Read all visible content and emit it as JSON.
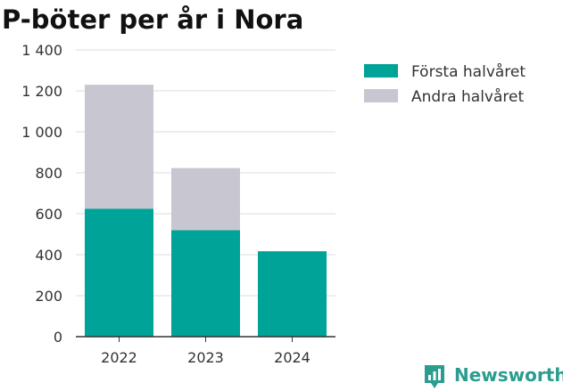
{
  "chart_data": {
    "type": "bar",
    "stacked": true,
    "title": "P-böter per år i Nora",
    "categories": [
      "2022",
      "2023",
      "2024"
    ],
    "series": [
      {
        "name": "Första halvåret",
        "color": "#00a398",
        "values": [
          625,
          520,
          417
        ]
      },
      {
        "name": "Andra halvåret",
        "color": "#c8c7d1",
        "values": [
          605,
          303,
          0
        ]
      }
    ],
    "ylim": [
      0,
      1400
    ],
    "yticks": [
      0,
      200,
      400,
      600,
      800,
      1000,
      1200,
      1400
    ],
    "ytick_labels": [
      "0",
      "200",
      "400",
      "600",
      "800",
      "1 000",
      "1 200",
      "1 400"
    ],
    "grid": true,
    "legend_position": "top-right",
    "xlabel": "",
    "ylabel": ""
  },
  "branding": {
    "name": "Newsworthy",
    "color": "#2a9d8f",
    "icon": "newsworthy-logo-icon"
  }
}
